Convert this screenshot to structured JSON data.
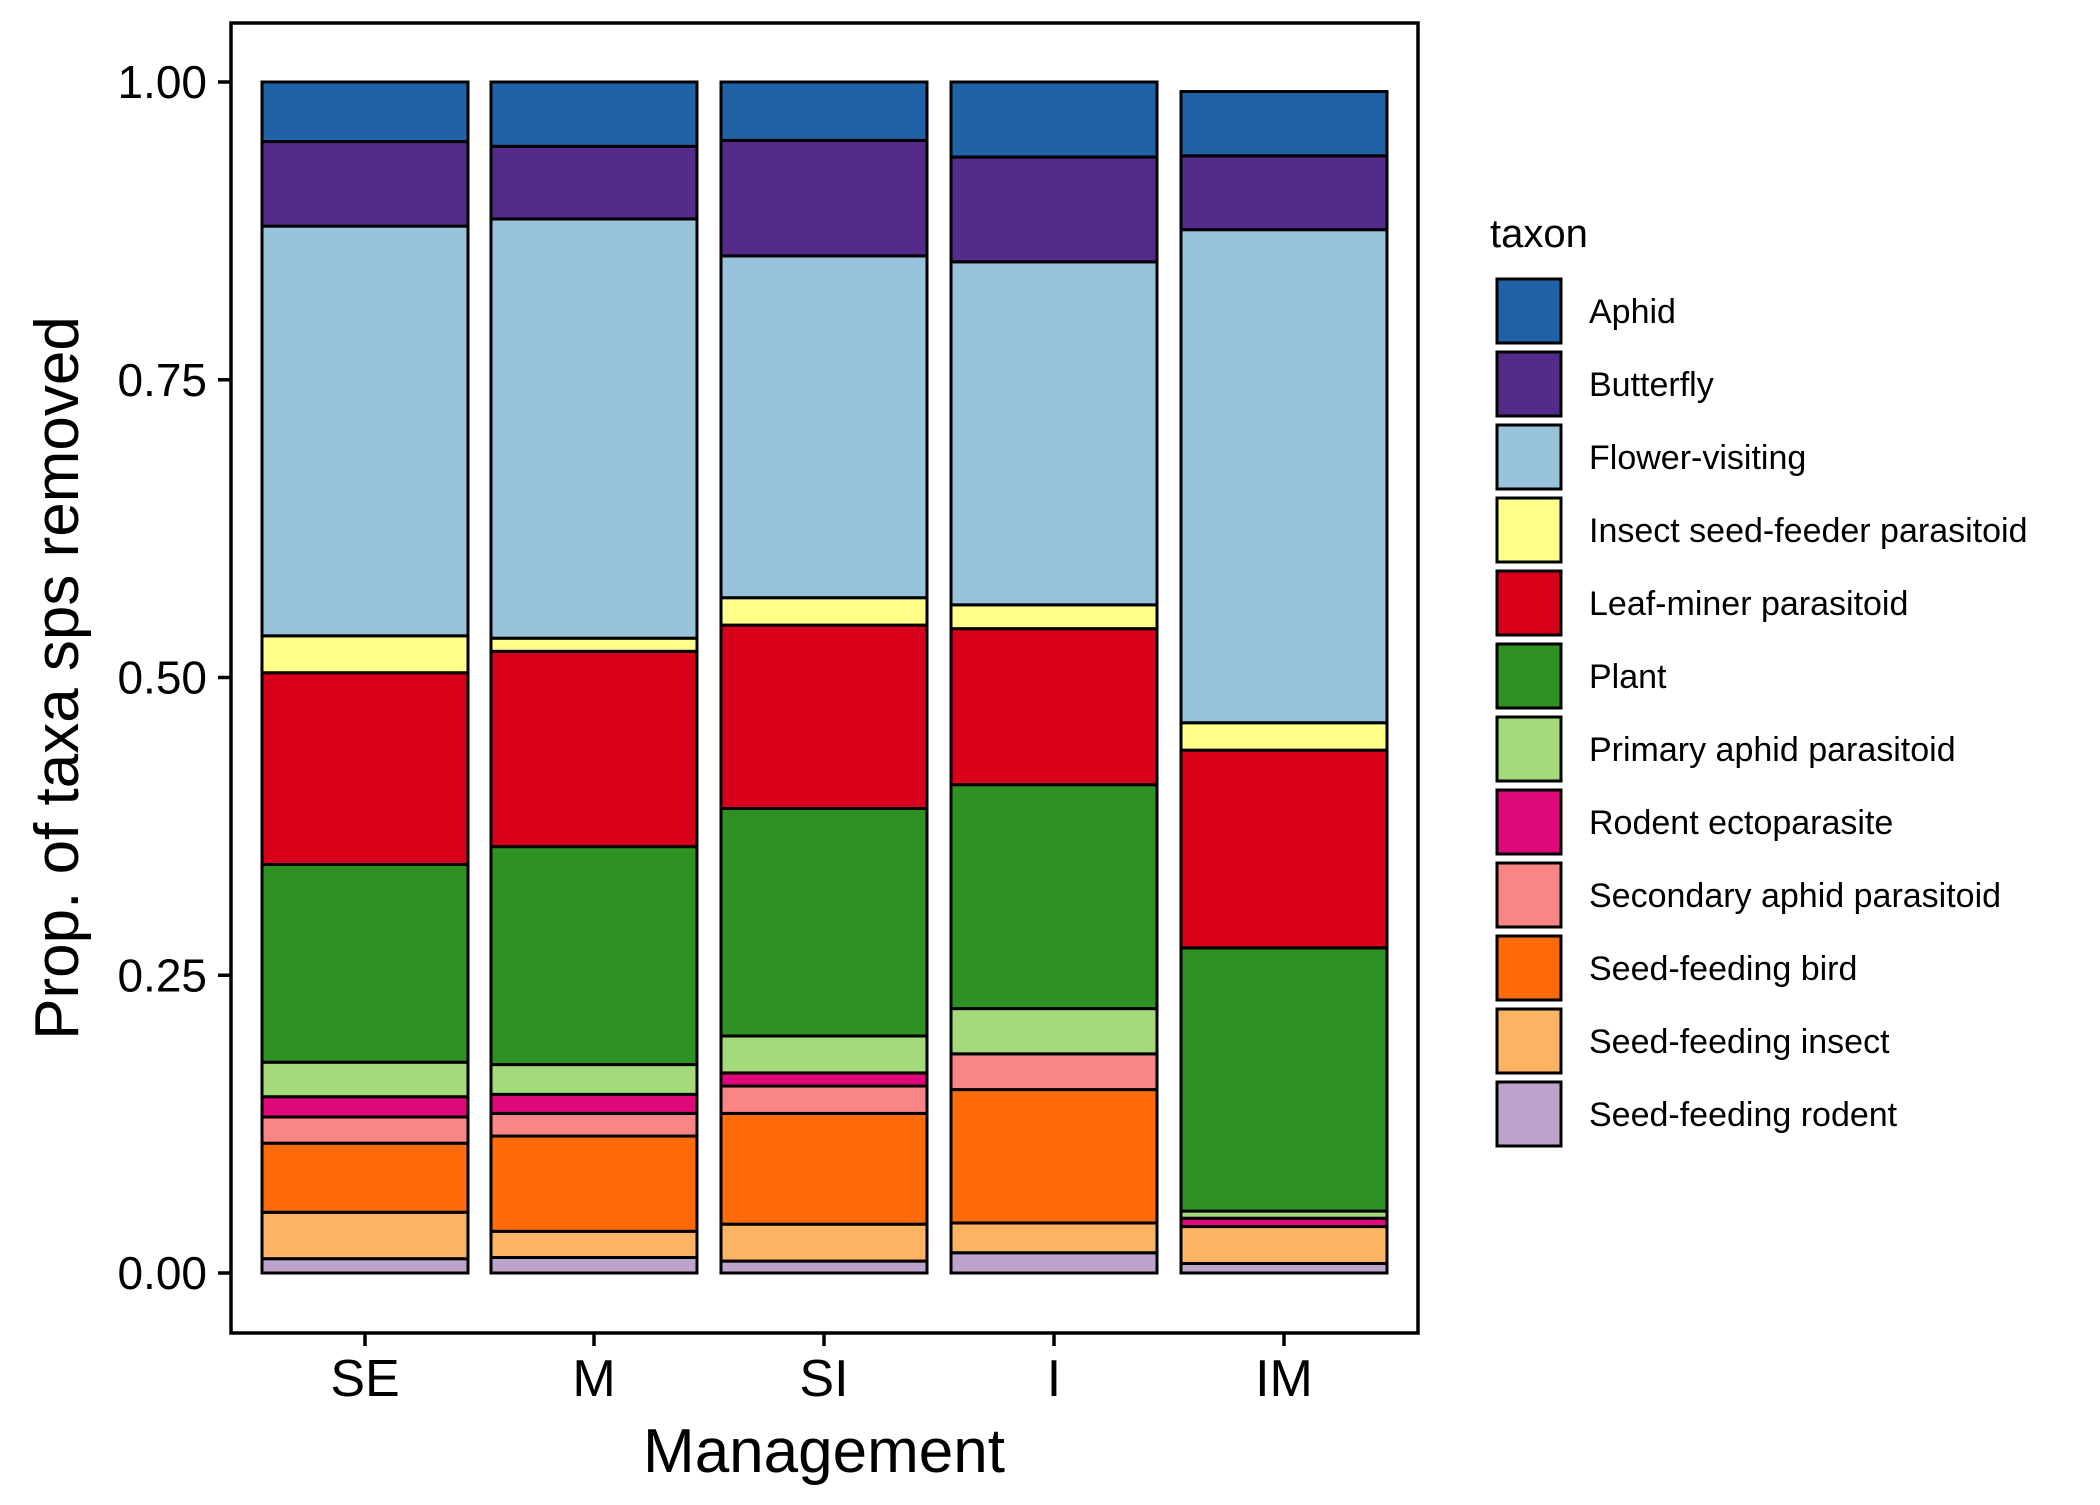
{
  "chart_data": {
    "type": "bar",
    "stacked": true,
    "xlabel": "Management",
    "ylabel": "Prop. of taxa sps removed",
    "ylim": [
      0,
      1
    ],
    "yticks": [
      "0.00",
      "0.25",
      "0.50",
      "0.75",
      "1.00"
    ],
    "ytick_values": [
      0,
      0.25,
      0.5,
      0.75,
      1.0
    ],
    "categories": [
      "SE",
      "M",
      "SI",
      "I",
      "IM"
    ],
    "legend_title": "taxon",
    "legend_position": "right",
    "grid": false,
    "series": [
      {
        "name": "Seed-feeding rodent",
        "color": "#BCA4CC",
        "values": [
          0.012,
          0.013,
          0.01,
          0.017,
          0.008
        ]
      },
      {
        "name": "Seed-feeding insect",
        "color": "#FBB463",
        "values": [
          0.039,
          0.022,
          0.031,
          0.025,
          0.031
        ]
      },
      {
        "name": "Seed-feeding bird",
        "color": "#FF6A0B",
        "values": [
          0.058,
          0.08,
          0.093,
          0.112,
          0.0
        ]
      },
      {
        "name": "Secondary aphid parasitoid",
        "color": "#F98685",
        "values": [
          0.022,
          0.019,
          0.023,
          0.03,
          0.0
        ]
      },
      {
        "name": "Rodent ectoparasite",
        "color": "#E0097C",
        "values": [
          0.017,
          0.016,
          0.011,
          0.0,
          0.007
        ]
      },
      {
        "name": "Primary aphid parasitoid",
        "color": "#A5DA7A",
        "values": [
          0.029,
          0.025,
          0.031,
          0.038,
          0.006
        ]
      },
      {
        "name": "Plant",
        "color": "#2E9123",
        "values": [
          0.166,
          0.183,
          0.191,
          0.188,
          0.221
        ]
      },
      {
        "name": "Leaf-miner parasitoid",
        "color": "#D9001C",
        "values": [
          0.161,
          0.164,
          0.154,
          0.131,
          0.166
        ]
      },
      {
        "name": "Insect seed-feeder parasitoid",
        "color": "#FFFF8A",
        "values": [
          0.031,
          0.011,
          0.023,
          0.02,
          0.023
        ]
      },
      {
        "name": "Flower-visiting",
        "color": "#97C3DB",
        "values": [
          0.344,
          0.352,
          0.287,
          0.288,
          0.414
        ]
      },
      {
        "name": "Butterfly",
        "color": "#542B8A",
        "values": [
          0.071,
          0.061,
          0.097,
          0.088,
          0.062
        ]
      },
      {
        "name": "Aphid",
        "color": "#1F63A6",
        "values": [
          0.05,
          0.054,
          0.049,
          0.063,
          0.054
        ]
      }
    ],
    "legend_order": [
      "Aphid",
      "Butterfly",
      "Flower-visiting",
      "Insect seed-feeder parasitoid",
      "Leaf-miner parasitoid",
      "Plant",
      "Primary aphid parasitoid",
      "Rodent ectoparasite",
      "Secondary aphid parasitoid",
      "Seed-feeding bird",
      "Seed-feeding insect",
      "Seed-feeding rodent"
    ]
  }
}
